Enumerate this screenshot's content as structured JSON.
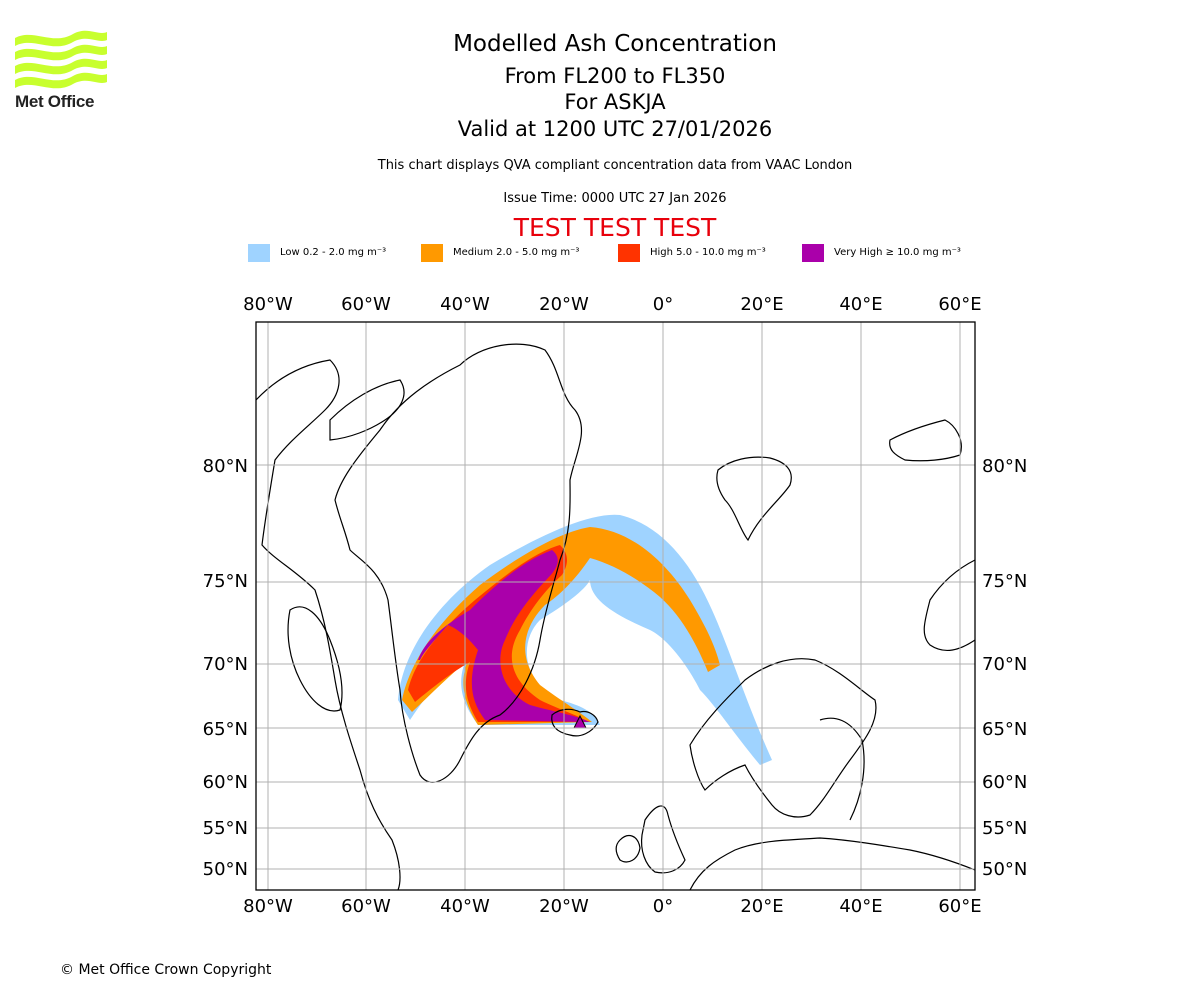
{
  "brand": {
    "logo_text": "Met Office",
    "logo_color": "#c8ff2e"
  },
  "header": {
    "title": "Modelled Ash Concentration",
    "levels": "From FL200 to FL350",
    "volcano": "For ASKJA",
    "valid": "Valid at 1200 UTC 27/01/2026",
    "disclaimer": "This chart displays QVA compliant concentration data from VAAC London",
    "issue_time": "Issue Time: 0000 UTC 27 Jan 2026",
    "test_banner": "TEST TEST TEST",
    "test_color": "#e8000b"
  },
  "legend": [
    {
      "label": "Low 0.2 - 2.0 mg m⁻³",
      "color": "#9fd3ff"
    },
    {
      "label": "Medium 2.0 - 5.0 mg m⁻³",
      "color": "#ff9900"
    },
    {
      "label": "High 5.0 - 10.0 mg m⁻³",
      "color": "#ff3300"
    },
    {
      "label": "Very High ≥ 10.0 mg m⁻³",
      "color": "#aa00aa"
    }
  ],
  "map": {
    "lon_ticks": [
      "80°W",
      "60°W",
      "40°W",
      "20°W",
      "0°",
      "20°E",
      "40°E",
      "60°E"
    ],
    "lat_ticks": [
      "80°N",
      "75°N",
      "70°N",
      "65°N",
      "60°N",
      "55°N",
      "50°N"
    ],
    "grid": true,
    "volcano_marker": "Askja"
  },
  "footer": {
    "copyright": "© Met Office Crown Copyright"
  }
}
